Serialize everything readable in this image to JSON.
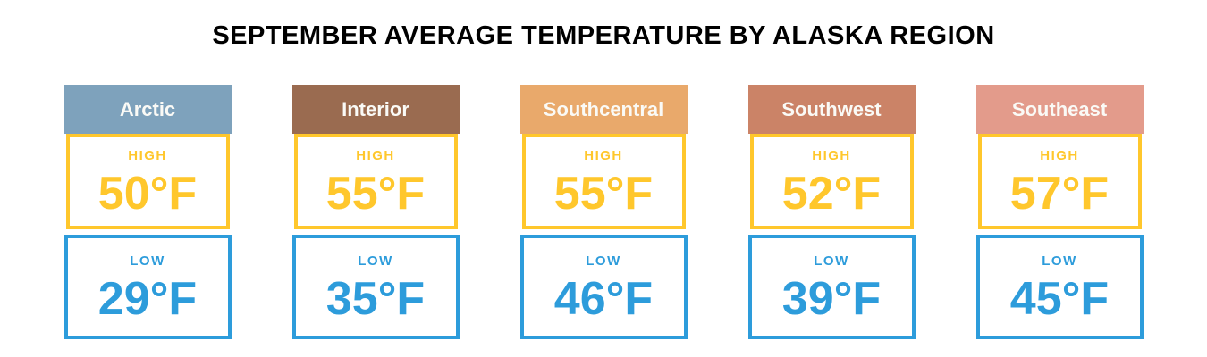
{
  "title": "SEPTEMBER AVERAGE TEMPERATURE BY ALASKA REGION",
  "colors": {
    "high_accent": "#FFC72C",
    "low_accent": "#2D9CDB",
    "title_text": "#000000",
    "header_text": "#FAFAF6",
    "background": "#FFFFFF"
  },
  "cards": [
    {
      "region": "Arctic",
      "header_color": "#7EA2BC",
      "high_label": "HIGH",
      "high_value": "50°F",
      "low_label": "LOW",
      "low_value": "29°F"
    },
    {
      "region": "Interior",
      "header_color": "#9A6B50",
      "high_label": "HIGH",
      "high_value": "55°F",
      "low_label": "LOW",
      "low_value": "35°F"
    },
    {
      "region": "Southcentral",
      "header_color": "#E9A96B",
      "high_label": "HIGH",
      "high_value": "55°F",
      "low_label": "LOW",
      "low_value": "46°F"
    },
    {
      "region": "Southwest",
      "header_color": "#CB8367",
      "high_label": "HIGH",
      "high_value": "52°F",
      "low_label": "LOW",
      "low_value": "39°F"
    },
    {
      "region": "Southeast",
      "header_color": "#E39B8B",
      "high_label": "HIGH",
      "high_value": "57°F",
      "low_label": "LOW",
      "low_value": "45°F"
    }
  ],
  "chart_data": {
    "type": "table",
    "title": "SEPTEMBER AVERAGE TEMPERATURE BY ALASKA REGION",
    "categories": [
      "Arctic",
      "Interior",
      "Southcentral",
      "Southwest",
      "Southeast"
    ],
    "series": [
      {
        "name": "High",
        "values": [
          50,
          55,
          55,
          52,
          57
        ]
      },
      {
        "name": "Low",
        "values": [
          29,
          35,
          46,
          39,
          45
        ]
      }
    ],
    "unit": "°F"
  }
}
